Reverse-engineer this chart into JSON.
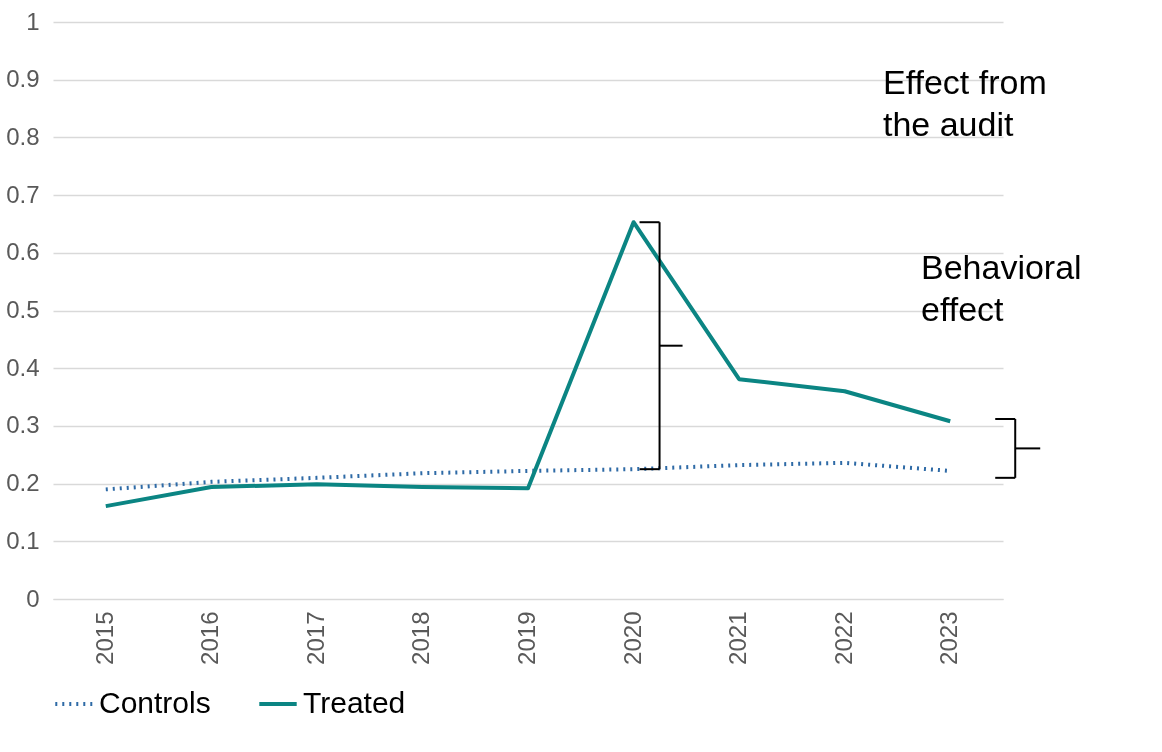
{
  "chart_data": {
    "type": "line",
    "categories": [
      "2015",
      "2016",
      "2017",
      "2018",
      "2019",
      "2020",
      "2021",
      "2022",
      "2023"
    ],
    "series": [
      {
        "name": "Controls",
        "color": "#2e6aa6",
        "line_style": "dotted",
        "values": [
          0.19,
          0.203,
          0.21,
          0.218,
          0.222,
          0.225,
          0.232,
          0.236,
          0.222
        ]
      },
      {
        "name": "Treated",
        "color": "#0b8583",
        "line_style": "solid",
        "values": [
          0.161,
          0.194,
          0.199,
          0.194,
          0.192,
          0.653,
          0.381,
          0.36,
          0.308
        ]
      }
    ],
    "ylim": [
      0,
      1
    ],
    "yticks": [
      0,
      {
        "value": 0.1,
        "label": "0.1"
      },
      {
        "value": 0.2,
        "label": "0.2"
      },
      {
        "value": 0.3,
        "label": "0.3"
      },
      {
        "value": 0.4,
        "label": "0.4"
      },
      {
        "value": 0.5,
        "label": "0.5"
      },
      {
        "value": 0.6,
        "label": "0.6"
      },
      {
        "value": 0.7,
        "label": "0.7"
      },
      {
        "value": 0.8,
        "label": "0.8"
      },
      {
        "value": 0.9,
        "label": "0.9"
      },
      1
    ],
    "grid": "y",
    "legend": "bottom",
    "marker": "none",
    "annotations": [
      "Effect from\nthe audit",
      "Behavioral\neffect"
    ]
  }
}
